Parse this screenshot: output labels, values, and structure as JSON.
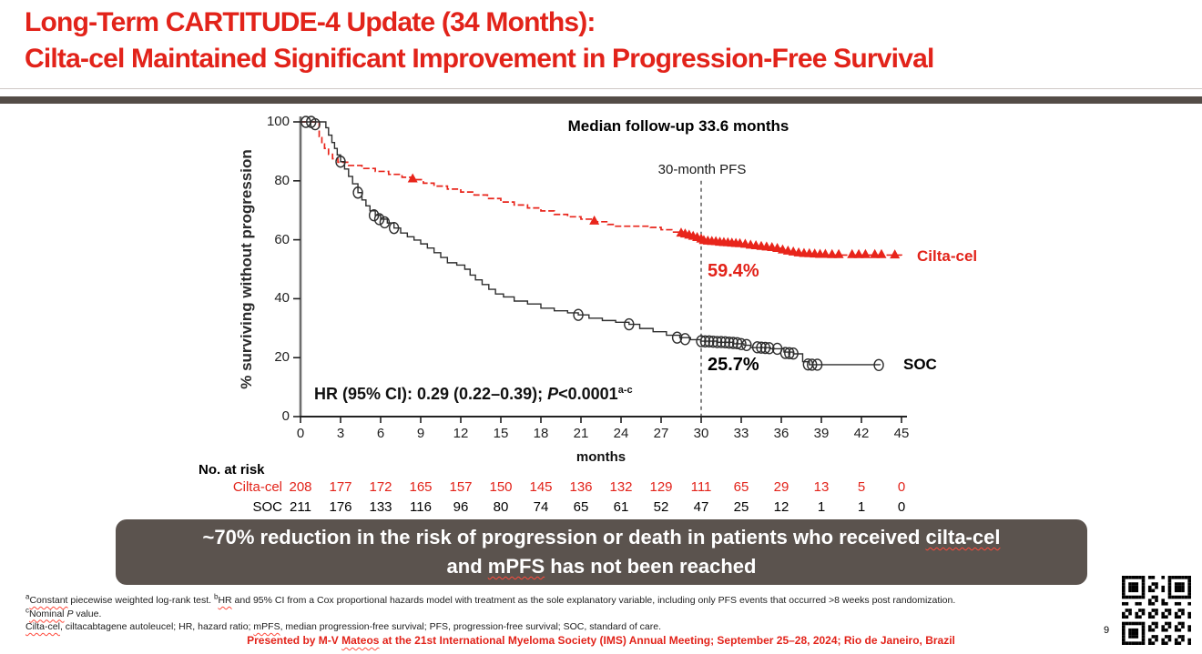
{
  "title": {
    "line1": "Long-Term CARTITUDE-4 Update (34 Months):",
    "line2": "Cilta-cel Maintained Significant Improvement in Progression-Free Survival"
  },
  "colors": {
    "accent_red": "#e2231a",
    "curve_red": "#e8251b",
    "curve_black": "#2e2e2e",
    "divider_gray": "#544c47",
    "callout_gray": "#5b534e"
  },
  "chart_data": {
    "type": "line",
    "subtype": "kaplan-meier step curves with censor marks",
    "title": "Median follow-up 33.6 months",
    "ylabel": "% surviving without progression",
    "xlabel": "months",
    "xlim": [
      0,
      45
    ],
    "ylim": [
      0,
      100
    ],
    "xticks": [
      0,
      3,
      6,
      9,
      12,
      15,
      18,
      21,
      24,
      27,
      30,
      33,
      36,
      39,
      42,
      45
    ],
    "yticks": [
      0,
      20,
      40,
      60,
      80,
      100
    ],
    "grid": "off",
    "legend_position": "right of curve ends",
    "annotation_30m": "30-month PFS",
    "dashed_line": {
      "x": 30,
      "y_top": 80,
      "y_bottom": 0
    },
    "pfs_labels": {
      "cilta": "59.4%",
      "soc": "25.7%"
    },
    "hr_annotation": [
      {
        "t": "HR (95% CI): 0.29 (0.22–0.39); "
      },
      {
        "t": "P",
        "i": true
      },
      {
        "t": "<0.0001"
      },
      {
        "t": "a-c",
        "sup": true
      }
    ],
    "series": [
      {
        "name": "Cilta-cel",
        "color": "#e8251b",
        "marker": "triangle",
        "line_style": "dashed",
        "pfs_30m": 59.4,
        "steps": [
          [
            0,
            100
          ],
          [
            1.2,
            100
          ],
          [
            1.4,
            95
          ],
          [
            1.6,
            92.5
          ],
          [
            1.8,
            91
          ],
          [
            2.1,
            89
          ],
          [
            2.4,
            87.5
          ],
          [
            2.8,
            86.3
          ],
          [
            3.6,
            85.2
          ],
          [
            4.6,
            84.2
          ],
          [
            5.6,
            83.2
          ],
          [
            6.6,
            82.2
          ],
          [
            7.6,
            81.2
          ],
          [
            8.4,
            80.4
          ],
          [
            9.2,
            79.2
          ],
          [
            10,
            78.2
          ],
          [
            11,
            77.2
          ],
          [
            12,
            76.2
          ],
          [
            13,
            75.2
          ],
          [
            14,
            74
          ],
          [
            15,
            72.8
          ],
          [
            16,
            71.8
          ],
          [
            17,
            70.8
          ],
          [
            18,
            69.8
          ],
          [
            19,
            68.6
          ],
          [
            20,
            67.8
          ],
          [
            21,
            67
          ],
          [
            22,
            66.1
          ],
          [
            23,
            65.2
          ],
          [
            23.6,
            64.6
          ],
          [
            26.2,
            64.2
          ],
          [
            27,
            63.4
          ],
          [
            27.8,
            62.6
          ],
          [
            28.6,
            61.8
          ],
          [
            29.2,
            61
          ],
          [
            29.6,
            60.4
          ],
          [
            30,
            59.4
          ],
          [
            31,
            59
          ],
          [
            32,
            58.6
          ],
          [
            33,
            58.1
          ],
          [
            34,
            57.6
          ],
          [
            35,
            57.1
          ],
          [
            36,
            56.4
          ],
          [
            36.6,
            55.8
          ],
          [
            37.4,
            55.2
          ],
          [
            38.4,
            54.8
          ],
          [
            45,
            54.6
          ]
        ],
        "censors": [
          [
            8.4,
            80.4
          ],
          [
            22,
            66.1
          ],
          [
            28.5,
            62
          ],
          [
            28.8,
            61.7
          ],
          [
            29.1,
            61.3
          ],
          [
            29.4,
            60.9
          ],
          [
            29.7,
            60.5
          ],
          [
            30,
            60
          ],
          [
            30.2,
            59.5
          ],
          [
            30.5,
            59.3
          ],
          [
            30.8,
            59.2
          ],
          [
            31.1,
            59.1
          ],
          [
            31.4,
            58.9
          ],
          [
            31.7,
            58.8
          ],
          [
            32,
            58.7
          ],
          [
            32.3,
            58.6
          ],
          [
            32.6,
            58.5
          ],
          [
            32.9,
            58.4
          ],
          [
            33.3,
            58.2
          ],
          [
            33.7,
            57.9
          ],
          [
            34.1,
            57.7
          ],
          [
            34.5,
            57.5
          ],
          [
            34.9,
            57.3
          ],
          [
            35.3,
            57.1
          ],
          [
            35.7,
            56.8
          ],
          [
            36.1,
            56.3
          ],
          [
            36.5,
            55.9
          ],
          [
            36.9,
            55.6
          ],
          [
            37.3,
            55.3
          ],
          [
            37.7,
            55.1
          ],
          [
            38.1,
            55
          ],
          [
            38.5,
            54.9
          ],
          [
            38.9,
            54.8
          ],
          [
            39.3,
            54.8
          ],
          [
            39.8,
            54.7
          ],
          [
            40.3,
            54.7
          ],
          [
            41.3,
            54.7
          ],
          [
            41.8,
            54.7
          ],
          [
            42.3,
            54.7
          ],
          [
            43,
            54.7
          ],
          [
            43.5,
            54.7
          ],
          [
            44.5,
            54.6
          ]
        ]
      },
      {
        "name": "SOC",
        "color": "#2e2e2e",
        "marker": "circle",
        "line_style": "solid",
        "pfs_30m": 25.7,
        "steps": [
          [
            0,
            100
          ],
          [
            1.7,
            100
          ],
          [
            1.9,
            98
          ],
          [
            2.1,
            95.5
          ],
          [
            2.35,
            93
          ],
          [
            2.55,
            91
          ],
          [
            2.75,
            88.8
          ],
          [
            3,
            86.5
          ],
          [
            3.3,
            84
          ],
          [
            3.6,
            81.5
          ],
          [
            3.9,
            79
          ],
          [
            4.3,
            76
          ],
          [
            4.6,
            73.5
          ],
          [
            4.9,
            71.5
          ],
          [
            5.2,
            69.8
          ],
          [
            5.6,
            68.3
          ],
          [
            6,
            67
          ],
          [
            6.5,
            65.7
          ],
          [
            7,
            64
          ],
          [
            7.5,
            62.3
          ],
          [
            8,
            61
          ],
          [
            8.5,
            59.9
          ],
          [
            9,
            58.6
          ],
          [
            9.5,
            57.2
          ],
          [
            10,
            55.6
          ],
          [
            10.5,
            54
          ],
          [
            11,
            52.2
          ],
          [
            11.7,
            51.4
          ],
          [
            12.3,
            50
          ],
          [
            12.7,
            48
          ],
          [
            13.1,
            46.4
          ],
          [
            13.6,
            44.8
          ],
          [
            14.1,
            43.2
          ],
          [
            14.6,
            41.6
          ],
          [
            15.2,
            40.6
          ],
          [
            16,
            39.2
          ],
          [
            17,
            38.2
          ],
          [
            18,
            36.8
          ],
          [
            19,
            35.9
          ],
          [
            20,
            35.2
          ],
          [
            20.8,
            34.5
          ],
          [
            21.6,
            33.4
          ],
          [
            22.6,
            32.6
          ],
          [
            23.6,
            32
          ],
          [
            24.6,
            31.3
          ],
          [
            25.4,
            29.9
          ],
          [
            26.4,
            28.8
          ],
          [
            27.4,
            27.6
          ],
          [
            28.4,
            26.8
          ],
          [
            29.2,
            26.1
          ],
          [
            30,
            25.6
          ],
          [
            31.2,
            25.2
          ],
          [
            32.4,
            24.7
          ],
          [
            33.2,
            24.2
          ],
          [
            33.7,
            23.4
          ],
          [
            35.2,
            23
          ],
          [
            36.2,
            21.9
          ],
          [
            36.9,
            21.3
          ],
          [
            37.6,
            18.6
          ],
          [
            38.1,
            17.6
          ],
          [
            43.4,
            17.5
          ]
        ],
        "censors": [
          [
            0.4,
            100
          ],
          [
            0.8,
            100
          ],
          [
            1.1,
            99.2
          ],
          [
            3,
            86.5
          ],
          [
            4.3,
            76
          ],
          [
            5.5,
            68.3
          ],
          [
            5.9,
            67
          ],
          [
            6.3,
            65.9
          ],
          [
            7,
            64
          ],
          [
            20.8,
            34.5
          ],
          [
            24.6,
            31.3
          ],
          [
            28.2,
            26.8
          ],
          [
            28.8,
            26.3
          ],
          [
            30,
            25.6
          ],
          [
            30.3,
            25.5
          ],
          [
            30.6,
            25.5
          ],
          [
            30.9,
            25.4
          ],
          [
            31.2,
            25.3
          ],
          [
            31.5,
            25.3
          ],
          [
            31.8,
            25.2
          ],
          [
            32.1,
            25.1
          ],
          [
            32.4,
            25
          ],
          [
            32.7,
            24.9
          ],
          [
            33,
            24.6
          ],
          [
            33.4,
            24.3
          ],
          [
            34.2,
            23.5
          ],
          [
            34.5,
            23.4
          ],
          [
            34.8,
            23.3
          ],
          [
            35.1,
            23.2
          ],
          [
            35.7,
            23
          ],
          [
            36.3,
            21.6
          ],
          [
            36.6,
            21.5
          ],
          [
            36.9,
            21.4
          ],
          [
            38,
            17.7
          ],
          [
            38.3,
            17.6
          ],
          [
            38.7,
            17.6
          ],
          [
            43.3,
            17.5
          ]
        ]
      }
    ]
  },
  "atrisk": {
    "title": "No. at risk",
    "rows": [
      {
        "label": "Cilta-cel",
        "color": "#e2231a",
        "values": [
          208,
          177,
          172,
          165,
          157,
          150,
          145,
          136,
          132,
          129,
          111,
          65,
          29,
          13,
          5,
          0
        ]
      },
      {
        "label": "SOC",
        "color": "#000000",
        "values": [
          211,
          176,
          133,
          116,
          96,
          80,
          74,
          65,
          61,
          52,
          47,
          25,
          12,
          1,
          1,
          0
        ]
      }
    ]
  },
  "callout": {
    "line1": [
      {
        "t": "~70% reduction in the risk of progression or death in patients who received "
      },
      {
        "t": "cilta-cel",
        "wavy": true
      }
    ],
    "line2": [
      {
        "t": "and "
      },
      {
        "t": "mPFS",
        "wavy": true
      },
      {
        "t": " has not been reached"
      }
    ]
  },
  "footnotes": {
    "line1": [
      {
        "t": "a",
        "sup": true
      },
      {
        "t": "Constant",
        "wavy": true
      },
      {
        "t": " piecewise weighted log-rank test. "
      },
      {
        "t": "b",
        "sup": true
      },
      {
        "t": "HR",
        "wavy": true
      },
      {
        "t": " and 95% CI from a Cox proportional hazards model with treatment as the sole explanatory variable, including only PFS events that occurred >8 weeks post randomization."
      }
    ],
    "line2": [
      {
        "t": "c",
        "sup": true
      },
      {
        "t": "Nominal",
        "wavy": true
      },
      {
        "t": " "
      },
      {
        "t": "P",
        "i": true
      },
      {
        "t": " value."
      }
    ],
    "line3": [
      {
        "t": "Cilta-cel",
        "wavy": true
      },
      {
        "t": ", ciltacabtagene autoleucel; HR, hazard ratio; "
      },
      {
        "t": "mPFS",
        "wavy": true
      },
      {
        "t": ", median progression-free survival; PFS, progression-free survival; SOC, standard of care."
      }
    ]
  },
  "footer": [
    {
      "t": "Presented by M-V "
    },
    {
      "t": "Mateos",
      "wavy": true
    },
    {
      "t": " at the 21st International Myeloma Society (IMS) Annual Meeting; September 25–28, 2024; Rio de Janeiro, Brazil"
    }
  ],
  "page_number": "9"
}
